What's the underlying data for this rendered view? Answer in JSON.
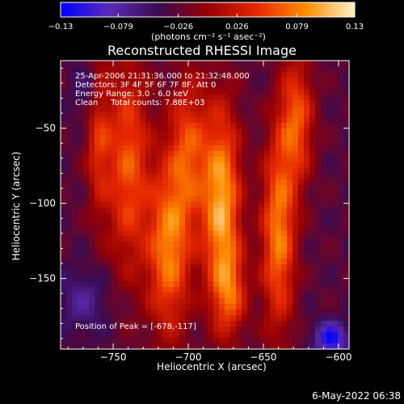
{
  "chart_data": {
    "type": "heatmap",
    "title": "Reconstructed RHESSI Image",
    "xlabel": "Heliocentric X (arcsec)",
    "ylabel": "Heliocentric Y (arcsec)",
    "xlim": [
      -785,
      -593
    ],
    "ylim": [
      -197,
      -5
    ],
    "x_ticks": [
      -750,
      -700,
      -650,
      -600
    ],
    "x_tick_labels": [
      "−750",
      "−700",
      "−650",
      "−600"
    ],
    "y_ticks": [
      -50,
      -100,
      -150
    ],
    "y_tick_labels": [
      "−50",
      "−100",
      "−150"
    ],
    "colorbar": {
      "min": -0.13,
      "max": 0.13,
      "ticks": [
        -0.13,
        -0.079,
        -0.026,
        0.026,
        0.079,
        0.13
      ],
      "tick_labels": [
        "−0.13",
        "−0.079",
        "−0.026",
        "0.026",
        "0.079",
        "0.13"
      ],
      "units": "(photons cm⁻² s⁻¹ asec⁻²)",
      "colors": [
        "#0000ff",
        "#5a2ab4",
        "#3a0a50",
        "#960005",
        "#e62800",
        "#ff8c00",
        "#fff0c8"
      ]
    },
    "annotations": [
      "25-Apr-2006 21:31:36.000 to 21:32:48.000",
      "Detectors: 3F 4F 5F 6F 7F 8F, Att 0",
      "Energy Range: 3.0 - 6.0 keV",
      "Clean     Total counts: 7.88E+03"
    ],
    "peak_label": "Position of Peak = [-678,-117]",
    "peak_position": [
      -678,
      -117
    ],
    "sources": [
      {
        "x": -760,
        "y": -50,
        "sx": 6,
        "sy": 40,
        "amp": 0.07
      },
      {
        "x": -740,
        "y": -75,
        "sx": 10,
        "sy": 50,
        "amp": 0.09
      },
      {
        "x": -713,
        "y": -130,
        "sx": 10,
        "sy": 40,
        "amp": 0.11
      },
      {
        "x": -700,
        "y": -65,
        "sx": 9,
        "sy": 35,
        "amp": 0.08
      },
      {
        "x": -678,
        "y": -100,
        "sx": 9,
        "sy": 45,
        "amp": 0.13
      },
      {
        "x": -672,
        "y": -160,
        "sx": 8,
        "sy": 20,
        "amp": 0.07
      },
      {
        "x": -640,
        "y": -120,
        "sx": 8,
        "sy": 45,
        "amp": 0.11
      },
      {
        "x": -628,
        "y": -45,
        "sx": 8,
        "sy": 30,
        "amp": 0.09
      },
      {
        "x": -770,
        "y": -165,
        "sx": 12,
        "sy": 15,
        "amp": -0.04
      },
      {
        "x": -605,
        "y": -190,
        "sx": 8,
        "sy": 8,
        "amp": -0.09
      },
      {
        "x": -765,
        "y": -25,
        "sx": 8,
        "sy": 15,
        "amp": -0.04
      }
    ]
  },
  "footer": {
    "date_label": "6-May-2022 06:38"
  }
}
